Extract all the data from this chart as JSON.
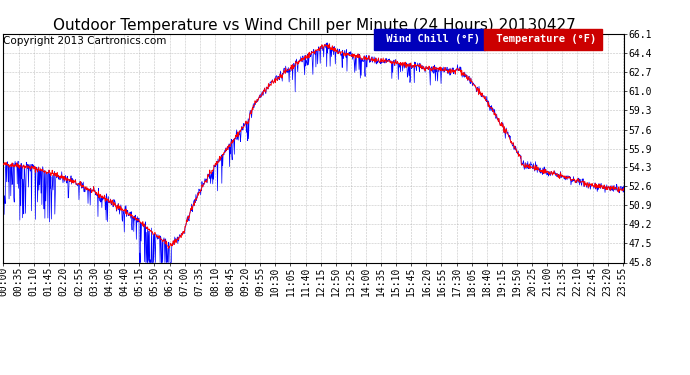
{
  "title": "Outdoor Temperature vs Wind Chill per Minute (24 Hours) 20130427",
  "copyright": "Copyright 2013 Cartronics.com",
  "yticks": [
    45.8,
    47.5,
    49.2,
    50.9,
    52.6,
    54.3,
    55.9,
    57.6,
    59.3,
    61.0,
    62.7,
    64.4,
    66.1
  ],
  "ymin": 45.8,
  "ymax": 66.1,
  "temp_color": "#FF0000",
  "wind_color": "#0000FF",
  "legend_wind_bg": "#0000CC",
  "legend_temp_bg": "#CC0000",
  "bg_color": "#FFFFFF",
  "grid_color": "#AAAAAA",
  "title_fontsize": 11,
  "tick_fontsize": 7,
  "copyright_fontsize": 7.5
}
